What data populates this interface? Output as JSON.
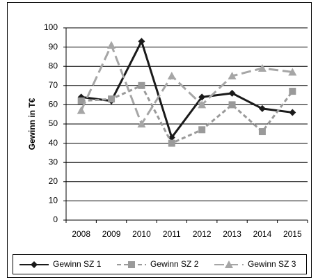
{
  "chart_data": {
    "type": "line",
    "y_label": "Gewinn in T€",
    "categories": [
      "2008",
      "2009",
      "2010",
      "2011",
      "2012",
      "2013",
      "2014",
      "2015"
    ],
    "series": [
      {
        "name": "Gewinn SZ 1",
        "color": "#1a1a1a",
        "dash": "none",
        "marker": "diamond",
        "values": [
          64,
          62,
          93,
          43,
          64,
          66,
          58,
          56
        ]
      },
      {
        "name": "Gewinn SZ 2",
        "color": "#9a9a9a",
        "dash": "6,4",
        "marker": "square",
        "values": [
          62,
          63,
          70,
          40,
          47,
          60,
          46,
          67
        ]
      },
      {
        "name": "Gewinn SZ 3",
        "color": "#a6a6a6",
        "dash": "14,6",
        "marker": "triangle",
        "values": [
          57,
          91,
          50,
          75,
          60,
          75,
          79,
          77
        ]
      }
    ],
    "ylim": [
      0,
      100
    ],
    "yticks": [
      0,
      10,
      20,
      30,
      40,
      50,
      60,
      70,
      80,
      90,
      100
    ],
    "grid": true,
    "legend": "bottom"
  }
}
